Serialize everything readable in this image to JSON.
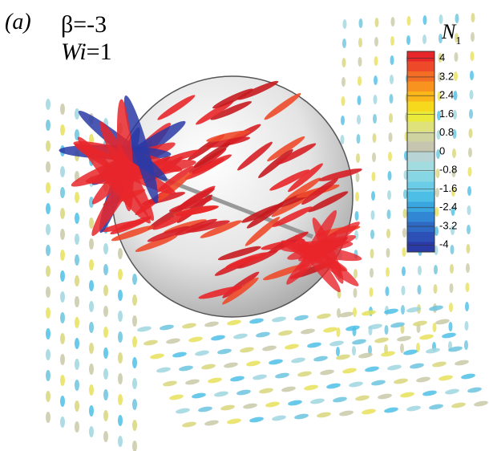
{
  "panel_label": "(a)",
  "beta_label": "β=-3",
  "wi_label": {
    "symbol": "Wi",
    "rest": "=1"
  },
  "colorbar": {
    "title": "N",
    "subscript": "1",
    "lim": [
      -4.3,
      4.3
    ],
    "ticks": [
      4,
      3.2,
      2.4,
      1.6,
      0.8,
      0,
      -0.8,
      -1.6,
      -2.4,
      -3.2,
      -4
    ],
    "colors": [
      "#e8262a",
      "#ee4a2a",
      "#f36d24",
      "#f7931e",
      "#fbb71a",
      "#f6d91c",
      "#eaea3a",
      "#dfe27a",
      "#cfd3a0",
      "#c6c6b0",
      "#b8d4d4",
      "#a2dce0",
      "#86d6e4",
      "#6acce6",
      "#4dbfe6",
      "#3aa6e0",
      "#3187d3",
      "#2e6ac4",
      "#2c50b6",
      "#2a3aa6"
    ]
  }
}
